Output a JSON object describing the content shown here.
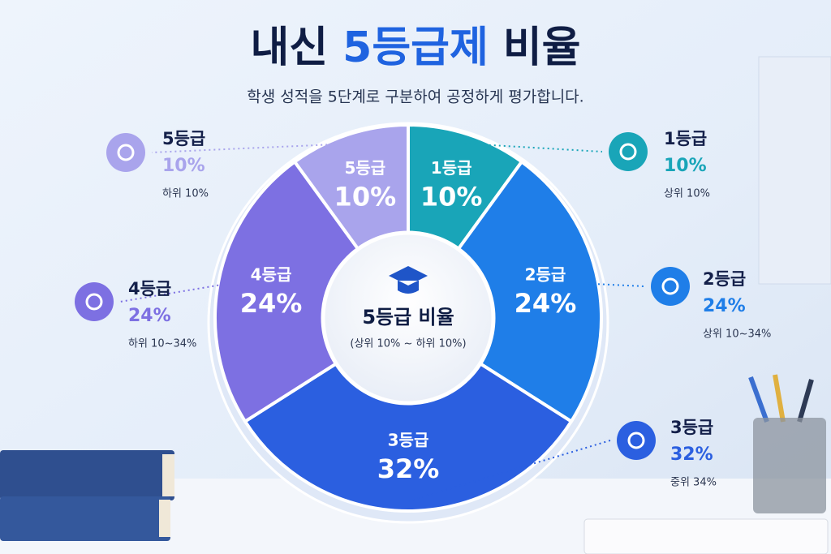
{
  "chart_data": {
    "type": "pie",
    "title": [
      "내신",
      "5등급제",
      "비율"
    ],
    "subtitle": "학생 성적을 5단계로 구분하여 공정하게 평가합니다.",
    "center_title": "5등급 비율",
    "center_subtitle": "(상위 10% ~ 하위 10%)",
    "categories": [
      "1등급",
      "2등급",
      "3등급",
      "4등급",
      "5등급"
    ],
    "values": [
      10,
      24,
      32,
      24,
      10
    ],
    "value_labels": [
      "10%",
      "24%",
      "32%",
      "24%",
      "10%"
    ],
    "descriptions": [
      "상위 10%",
      "상위 10~34%",
      "중위 34%",
      "하위 10~34%",
      "하위 10%"
    ],
    "colors": [
      "#19a5b8",
      "#1f7ee8",
      "#2b5fe0",
      "#7d70e2",
      "#a9a4ec"
    ]
  }
}
